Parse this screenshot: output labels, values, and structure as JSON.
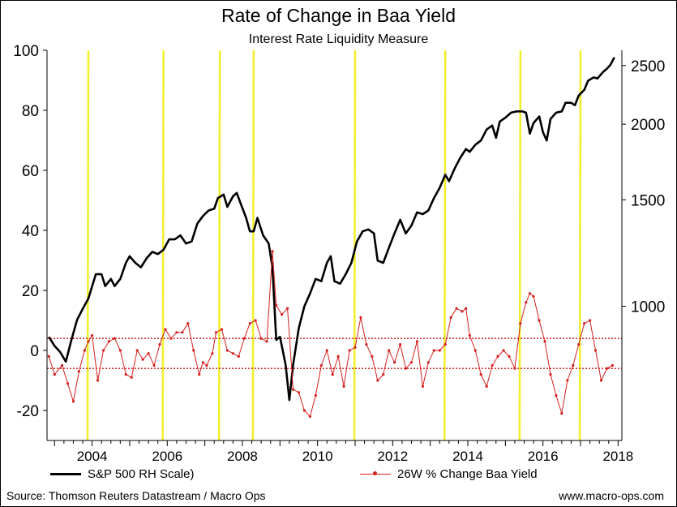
{
  "chart_data": {
    "type": "line",
    "title": "Rate of Change in Baa Yield",
    "subtitle": "Interest Rate Liquidity Measure",
    "x_ticks": [
      "2004",
      "2006",
      "2008",
      "2010",
      "2012",
      "2014",
      "2016",
      "2018"
    ],
    "x_range": [
      2002.8,
      2018.1
    ],
    "y_left": {
      "range": [
        -30,
        100
      ],
      "ticks": [
        "100",
        "80",
        "60",
        "40",
        "20",
        "0",
        "-20"
      ]
    },
    "y_right": {
      "scale": "log",
      "range": [
        600,
        2650
      ],
      "ticks": [
        "2500",
        "2000",
        "1500",
        "1000"
      ]
    },
    "thresholds": [
      4,
      -6
    ],
    "highlight_dates": [
      2003.9,
      2005.9,
      2007.4,
      2008.3,
      2011.0,
      2013.4,
      2015.4,
      2017.0
    ],
    "series": [
      {
        "name": "S&P 500 RH Scale)",
        "axis": "right",
        "points": [
          [
            2002.85,
            890
          ],
          [
            2003.0,
            860
          ],
          [
            2003.15,
            840
          ],
          [
            2003.3,
            810
          ],
          [
            2003.45,
            880
          ],
          [
            2003.6,
            950
          ],
          [
            2003.75,
            990
          ],
          [
            2003.9,
            1030
          ],
          [
            2004.1,
            1130
          ],
          [
            2004.25,
            1130
          ],
          [
            2004.35,
            1080
          ],
          [
            2004.5,
            1110
          ],
          [
            2004.6,
            1080
          ],
          [
            2004.75,
            1110
          ],
          [
            2004.9,
            1180
          ],
          [
            2005.0,
            1210
          ],
          [
            2005.15,
            1180
          ],
          [
            2005.3,
            1160
          ],
          [
            2005.45,
            1200
          ],
          [
            2005.6,
            1230
          ],
          [
            2005.75,
            1220
          ],
          [
            2005.9,
            1240
          ],
          [
            2006.05,
            1290
          ],
          [
            2006.2,
            1290
          ],
          [
            2006.35,
            1310
          ],
          [
            2006.5,
            1270
          ],
          [
            2006.65,
            1280
          ],
          [
            2006.8,
            1370
          ],
          [
            2006.95,
            1410
          ],
          [
            2007.1,
            1440
          ],
          [
            2007.25,
            1450
          ],
          [
            2007.35,
            1510
          ],
          [
            2007.5,
            1530
          ],
          [
            2007.6,
            1460
          ],
          [
            2007.75,
            1520
          ],
          [
            2007.85,
            1540
          ],
          [
            2007.95,
            1480
          ],
          [
            2008.1,
            1400
          ],
          [
            2008.2,
            1330
          ],
          [
            2008.3,
            1330
          ],
          [
            2008.4,
            1400
          ],
          [
            2008.55,
            1310
          ],
          [
            2008.7,
            1270
          ],
          [
            2008.8,
            1160
          ],
          [
            2008.9,
            880
          ],
          [
            2009.0,
            890
          ],
          [
            2009.15,
            800
          ],
          [
            2009.25,
            700
          ],
          [
            2009.35,
            800
          ],
          [
            2009.5,
            920
          ],
          [
            2009.65,
            1000
          ],
          [
            2009.8,
            1050
          ],
          [
            2009.95,
            1110
          ],
          [
            2010.1,
            1100
          ],
          [
            2010.25,
            1180
          ],
          [
            2010.35,
            1210
          ],
          [
            2010.45,
            1100
          ],
          [
            2010.6,
            1090
          ],
          [
            2010.75,
            1130
          ],
          [
            2010.9,
            1180
          ],
          [
            2011.05,
            1280
          ],
          [
            2011.2,
            1330
          ],
          [
            2011.35,
            1340
          ],
          [
            2011.5,
            1320
          ],
          [
            2011.6,
            1190
          ],
          [
            2011.75,
            1180
          ],
          [
            2011.9,
            1250
          ],
          [
            2012.05,
            1320
          ],
          [
            2012.2,
            1390
          ],
          [
            2012.35,
            1320
          ],
          [
            2012.5,
            1360
          ],
          [
            2012.65,
            1430
          ],
          [
            2012.8,
            1420
          ],
          [
            2012.95,
            1440
          ],
          [
            2013.1,
            1510
          ],
          [
            2013.25,
            1570
          ],
          [
            2013.4,
            1650
          ],
          [
            2013.5,
            1610
          ],
          [
            2013.65,
            1690
          ],
          [
            2013.8,
            1760
          ],
          [
            2013.95,
            1820
          ],
          [
            2014.05,
            1800
          ],
          [
            2014.2,
            1850
          ],
          [
            2014.35,
            1880
          ],
          [
            2014.5,
            1960
          ],
          [
            2014.65,
            1990
          ],
          [
            2014.75,
            1900
          ],
          [
            2014.85,
            2020
          ],
          [
            2015.0,
            2050
          ],
          [
            2015.15,
            2090
          ],
          [
            2015.3,
            2100
          ],
          [
            2015.45,
            2100
          ],
          [
            2015.55,
            2090
          ],
          [
            2015.65,
            1930
          ],
          [
            2015.75,
            2010
          ],
          [
            2015.9,
            2060
          ],
          [
            2016.0,
            1940
          ],
          [
            2016.1,
            1880
          ],
          [
            2016.2,
            2040
          ],
          [
            2016.35,
            2090
          ],
          [
            2016.5,
            2100
          ],
          [
            2016.6,
            2170
          ],
          [
            2016.75,
            2170
          ],
          [
            2016.85,
            2150
          ],
          [
            2016.95,
            2230
          ],
          [
            2017.1,
            2280
          ],
          [
            2017.2,
            2360
          ],
          [
            2017.35,
            2390
          ],
          [
            2017.45,
            2380
          ],
          [
            2017.6,
            2440
          ],
          [
            2017.7,
            2470
          ],
          [
            2017.8,
            2510
          ],
          [
            2017.9,
            2580
          ]
        ]
      },
      {
        "name": "26W % Change Baa Yield",
        "axis": "left",
        "points": [
          [
            2002.85,
            -2
          ],
          [
            2003.0,
            -8
          ],
          [
            2003.2,
            -5
          ],
          [
            2003.35,
            -11
          ],
          [
            2003.5,
            -17
          ],
          [
            2003.65,
            -7
          ],
          [
            2003.8,
            0
          ],
          [
            2003.9,
            3
          ],
          [
            2004.0,
            5
          ],
          [
            2004.15,
            -10
          ],
          [
            2004.3,
            0
          ],
          [
            2004.45,
            3
          ],
          [
            2004.6,
            4
          ],
          [
            2004.75,
            0
          ],
          [
            2004.9,
            -8
          ],
          [
            2005.05,
            -9
          ],
          [
            2005.2,
            0
          ],
          [
            2005.35,
            -3
          ],
          [
            2005.5,
            -1
          ],
          [
            2005.65,
            -5
          ],
          [
            2005.8,
            2
          ],
          [
            2005.95,
            7
          ],
          [
            2006.1,
            4
          ],
          [
            2006.25,
            6
          ],
          [
            2006.4,
            6
          ],
          [
            2006.55,
            9
          ],
          [
            2006.7,
            0
          ],
          [
            2006.85,
            -8
          ],
          [
            2006.95,
            -4
          ],
          [
            2007.05,
            -5
          ],
          [
            2007.2,
            -1
          ],
          [
            2007.3,
            6
          ],
          [
            2007.45,
            7
          ],
          [
            2007.6,
            0
          ],
          [
            2007.75,
            -1
          ],
          [
            2007.9,
            -2
          ],
          [
            2008.05,
            4
          ],
          [
            2008.2,
            9
          ],
          [
            2008.35,
            10
          ],
          [
            2008.5,
            4
          ],
          [
            2008.65,
            3
          ],
          [
            2008.8,
            33
          ],
          [
            2008.9,
            15
          ],
          [
            2009.05,
            12
          ],
          [
            2009.2,
            14
          ],
          [
            2009.35,
            -13
          ],
          [
            2009.5,
            -14
          ],
          [
            2009.65,
            -20
          ],
          [
            2009.8,
            -22
          ],
          [
            2009.95,
            -15
          ],
          [
            2010.1,
            -5
          ],
          [
            2010.25,
            0
          ],
          [
            2010.4,
            -8
          ],
          [
            2010.55,
            -2
          ],
          [
            2010.7,
            -12
          ],
          [
            2010.85,
            0
          ],
          [
            2011.0,
            1
          ],
          [
            2011.15,
            11
          ],
          [
            2011.3,
            2
          ],
          [
            2011.45,
            -2
          ],
          [
            2011.6,
            -10
          ],
          [
            2011.75,
            -8
          ],
          [
            2011.9,
            0
          ],
          [
            2012.05,
            -4
          ],
          [
            2012.2,
            2
          ],
          [
            2012.35,
            -6
          ],
          [
            2012.5,
            -4
          ],
          [
            2012.65,
            3
          ],
          [
            2012.8,
            -12
          ],
          [
            2012.95,
            -4
          ],
          [
            2013.1,
            0
          ],
          [
            2013.25,
            0
          ],
          [
            2013.4,
            2
          ],
          [
            2013.55,
            11
          ],
          [
            2013.7,
            14
          ],
          [
            2013.85,
            13
          ],
          [
            2013.95,
            14
          ],
          [
            2014.05,
            5
          ],
          [
            2014.2,
            0
          ],
          [
            2014.35,
            -8
          ],
          [
            2014.5,
            -12
          ],
          [
            2014.65,
            -5
          ],
          [
            2014.8,
            -2
          ],
          [
            2014.95,
            0
          ],
          [
            2015.1,
            -2
          ],
          [
            2015.25,
            -6
          ],
          [
            2015.4,
            9
          ],
          [
            2015.55,
            16
          ],
          [
            2015.65,
            19
          ],
          [
            2015.75,
            18
          ],
          [
            2015.9,
            10
          ],
          [
            2016.05,
            3
          ],
          [
            2016.2,
            -8
          ],
          [
            2016.35,
            -15
          ],
          [
            2016.5,
            -21
          ],
          [
            2016.65,
            -10
          ],
          [
            2016.8,
            -5
          ],
          [
            2016.95,
            2
          ],
          [
            2017.1,
            9
          ],
          [
            2017.25,
            10
          ],
          [
            2017.4,
            0
          ],
          [
            2017.55,
            -10
          ],
          [
            2017.7,
            -6
          ],
          [
            2017.85,
            -5
          ]
        ]
      }
    ]
  },
  "footer": {
    "source": "Source: Thomson Reuters Datastream / Macro Ops",
    "website": "www.macro-ops.com"
  },
  "colors": {
    "sp500": "#000000",
    "baa": "#d42020",
    "highlight": "#f2ef2a",
    "threshold": "#cc1111"
  }
}
